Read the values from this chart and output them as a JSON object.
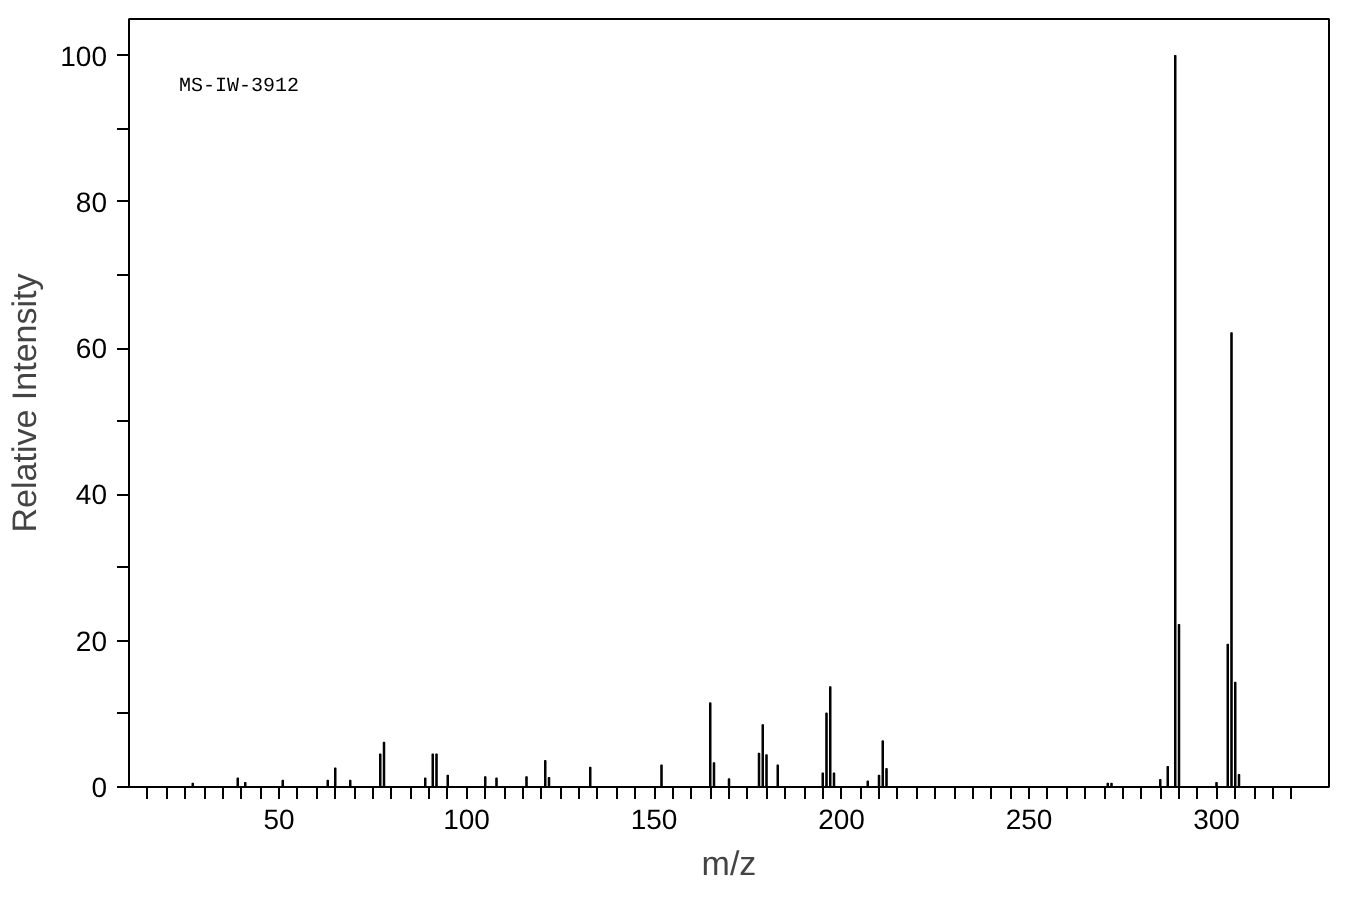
{
  "chart_data": {
    "type": "bar",
    "xlabel": "m/z",
    "ylabel": "Relative Intensity",
    "annotations": [
      "MS-IW-3912"
    ],
    "x": [
      27,
      39,
      41,
      51,
      63,
      65,
      69,
      77,
      78,
      89,
      91,
      92,
      95,
      105,
      108,
      116,
      121,
      122,
      133,
      152,
      165,
      166,
      170,
      178,
      179,
      180,
      183,
      195,
      196,
      197,
      198,
      207,
      210,
      211,
      212,
      271,
      272,
      285,
      287,
      289,
      290,
      300,
      303,
      304,
      305,
      306
    ],
    "values": [
      0.5,
      1.2,
      0.6,
      0.9,
      0.9,
      2.6,
      0.9,
      4.5,
      6.1,
      1.2,
      4.5,
      4.5,
      1.6,
      1.4,
      1.2,
      1.4,
      3.6,
      1.3,
      2.7,
      3.0,
      11.5,
      3.3,
      1.1,
      4.6,
      8.5,
      4.4,
      3.0,
      1.9,
      10.1,
      13.7,
      1.9,
      0.8,
      1.6,
      6.3,
      2.5,
      0.5,
      0.5,
      1.0,
      2.8,
      100,
      22.2,
      0.6,
      19.5,
      62.1,
      14.3,
      1.7
    ],
    "color": "#000000",
    "xlim": [
      10,
      330
    ],
    "ylim": [
      0,
      105
    ],
    "xticks": [
      {
        "value": 15,
        "label": null
      },
      {
        "value": 20,
        "label": null
      },
      {
        "value": 25,
        "label": null
      },
      {
        "value": 30,
        "label": null
      },
      {
        "value": 35,
        "label": null
      },
      {
        "value": 40,
        "label": null
      },
      {
        "value": 45,
        "label": null
      },
      50,
      {
        "value": 55,
        "label": null
      },
      {
        "value": 60,
        "label": null
      },
      {
        "value": 65,
        "label": null
      },
      {
        "value": 70,
        "label": null
      },
      {
        "value": 75,
        "label": null
      },
      {
        "value": 80,
        "label": null
      },
      {
        "value": 85,
        "label": null
      },
      {
        "value": 90,
        "label": null
      },
      {
        "value": 95,
        "label": null
      },
      100,
      {
        "value": 105,
        "label": null
      },
      {
        "value": 110,
        "label": null
      },
      {
        "value": 115,
        "label": null
      },
      {
        "value": 120,
        "label": null
      },
      {
        "value": 125,
        "label": null
      },
      {
        "value": 130,
        "label": null
      },
      {
        "value": 135,
        "label": null
      },
      {
        "value": 140,
        "label": null
      },
      {
        "value": 145,
        "label": null
      },
      150,
      {
        "value": 155,
        "label": null
      },
      {
        "value": 160,
        "label": null
      },
      {
        "value": 165,
        "label": null
      },
      {
        "value": 170,
        "label": null
      },
      {
        "value": 175,
        "label": null
      },
      {
        "value": 180,
        "label": null
      },
      {
        "value": 185,
        "label": null
      },
      {
        "value": 190,
        "label": null
      },
      {
        "value": 195,
        "label": null
      },
      200,
      {
        "value": 205,
        "label": null
      },
      {
        "value": 210,
        "label": null
      },
      {
        "value": 215,
        "label": null
      },
      {
        "value": 220,
        "label": null
      },
      {
        "value": 225,
        "label": null
      },
      {
        "value": 230,
        "label": null
      },
      {
        "value": 235,
        "label": null
      },
      {
        "value": 240,
        "label": null
      },
      {
        "value": 245,
        "label": null
      },
      250,
      {
        "value": 255,
        "label": null
      },
      {
        "value": 260,
        "label": null
      },
      {
        "value": 265,
        "label": null
      },
      {
        "value": 270,
        "label": null
      },
      {
        "value": 275,
        "label": null
      },
      {
        "value": 280,
        "label": null
      },
      {
        "value": 285,
        "label": null
      },
      {
        "value": 290,
        "label": null
      },
      {
        "value": 295,
        "label": null
      },
      300,
      {
        "value": 305,
        "label": null
      },
      {
        "value": 310,
        "label": null
      },
      {
        "value": 315,
        "label": null
      },
      {
        "value": 320,
        "label": null
      }
    ],
    "yticks": [
      0,
      {
        "value": 10,
        "label": null
      },
      20,
      {
        "value": 30,
        "label": null
      },
      40,
      {
        "value": 50,
        "label": null
      },
      60,
      {
        "value": 70,
        "label": null
      },
      80,
      {
        "value": 90,
        "label": null
      },
      100
    ],
    "grid": false
  }
}
